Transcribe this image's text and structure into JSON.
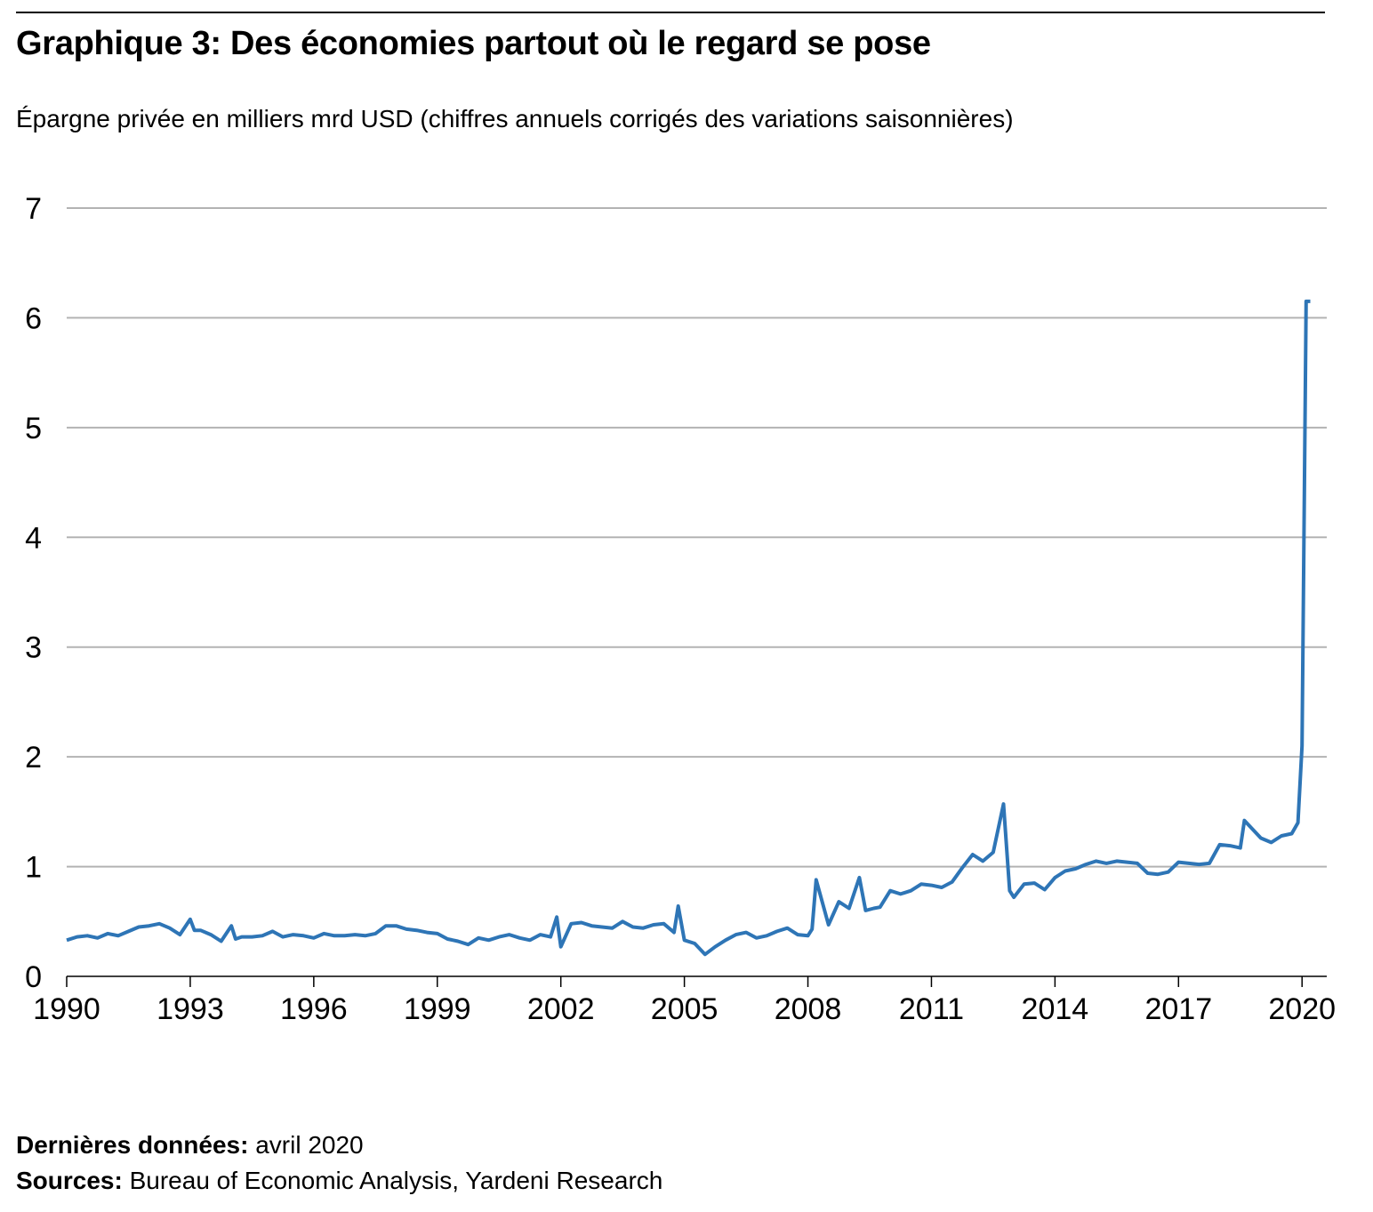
{
  "header": {
    "title": "Graphique 3: Des économies partout où le regard se pose",
    "subtitle": "Épargne privée en milliers mrd USD (chiffres annuels corrigés des variations saisonnières)"
  },
  "footer": {
    "latest_label": "Dernières données:",
    "latest_value": "avril 2020",
    "sources_label": "Sources:",
    "sources_value": "Bureau of Economic Analysis, Yardeni Research"
  },
  "colors": {
    "line": "#2e75b6",
    "grid": "#b3b3b3",
    "axis": "#000000"
  },
  "chart_data": {
    "type": "line",
    "title": "Graphique 3: Des économies partout où le regard se pose",
    "ylabel": "Épargne privée en milliers mrd USD (chiffres annuels corrigés des variations saisonnières)",
    "xlabel": "",
    "xlim": [
      1990,
      2020.6
    ],
    "ylim": [
      0,
      7
    ],
    "yticks": [
      0,
      1,
      2,
      3,
      4,
      5,
      6,
      7
    ],
    "xticks": [
      1990,
      1993,
      1996,
      1999,
      2002,
      2005,
      2008,
      2011,
      2014,
      2017,
      2020
    ],
    "grid": true,
    "legend": "none",
    "series": [
      {
        "x": [
          1990,
          1990.25,
          1990.5,
          1990.75,
          1991,
          1991.25,
          1991.5,
          1991.75,
          1992,
          1992.25,
          1992.5,
          1992.75,
          1993,
          1993.1,
          1993.25,
          1993.5,
          1993.75,
          1994,
          1994.1,
          1994.25,
          1994.5,
          1994.75,
          1995,
          1995.25,
          1995.5,
          1995.75,
          1996,
          1996.25,
          1996.5,
          1996.75,
          1997,
          1997.25,
          1997.5,
          1997.75,
          1998,
          1998.25,
          1998.5,
          1998.75,
          1999,
          1999.25,
          1999.5,
          1999.75,
          2000,
          2000.25,
          2000.5,
          2000.75,
          2001,
          2001.25,
          2001.5,
          2001.75,
          2001.9,
          2002,
          2002.25,
          2002.5,
          2002.75,
          2003,
          2003.25,
          2003.5,
          2003.75,
          2004,
          2004.25,
          2004.5,
          2004.75,
          2004.85,
          2005,
          2005.25,
          2005.5,
          2005.75,
          2006,
          2006.25,
          2006.5,
          2006.75,
          2007,
          2007.25,
          2007.5,
          2007.75,
          2008,
          2008.1,
          2008.2,
          2008.5,
          2008.75,
          2009,
          2009.25,
          2009.4,
          2009.6,
          2009.75,
          2010,
          2010.25,
          2010.5,
          2010.75,
          2011,
          2011.25,
          2011.5,
          2011.75,
          2012,
          2012.25,
          2012.5,
          2012.75,
          2012.9,
          2013,
          2013.25,
          2013.5,
          2013.75,
          2014,
          2014.25,
          2014.5,
          2014.75,
          2015,
          2015.25,
          2015.5,
          2015.75,
          2016,
          2016.25,
          2016.5,
          2016.75,
          2017,
          2017.25,
          2017.5,
          2017.75,
          2018,
          2018.25,
          2018.5,
          2018.6,
          2018.75,
          2019,
          2019.25,
          2019.5,
          2019.75,
          2019.9,
          2020,
          2020.1,
          2020.2
        ],
        "y": [
          0.33,
          0.36,
          0.37,
          0.35,
          0.39,
          0.37,
          0.41,
          0.45,
          0.46,
          0.48,
          0.44,
          0.38,
          0.52,
          0.42,
          0.42,
          0.38,
          0.32,
          0.46,
          0.34,
          0.36,
          0.36,
          0.37,
          0.41,
          0.36,
          0.38,
          0.37,
          0.35,
          0.39,
          0.37,
          0.37,
          0.38,
          0.37,
          0.39,
          0.46,
          0.46,
          0.43,
          0.42,
          0.4,
          0.39,
          0.34,
          0.32,
          0.29,
          0.35,
          0.33,
          0.36,
          0.38,
          0.35,
          0.33,
          0.38,
          0.36,
          0.54,
          0.27,
          0.48,
          0.49,
          0.46,
          0.45,
          0.44,
          0.5,
          0.45,
          0.44,
          0.47,
          0.48,
          0.4,
          0.64,
          0.33,
          0.3,
          0.2,
          0.27,
          0.33,
          0.38,
          0.4,
          0.35,
          0.37,
          0.41,
          0.44,
          0.38,
          0.37,
          0.43,
          0.88,
          0.47,
          0.68,
          0.62,
          0.9,
          0.6,
          0.62,
          0.63,
          0.78,
          0.75,
          0.78,
          0.84,
          0.83,
          0.81,
          0.86,
          0.99,
          1.11,
          1.05,
          1.13,
          1.57,
          0.78,
          0.72,
          0.84,
          0.85,
          0.79,
          0.9,
          0.96,
          0.98,
          1.02,
          1.05,
          1.03,
          1.05,
          1.04,
          1.03,
          0.94,
          0.93,
          0.95,
          1.04,
          1.03,
          1.02,
          1.03,
          1.2,
          1.19,
          1.17,
          1.42,
          1.36,
          1.26,
          1.22,
          1.28,
          1.3,
          1.4,
          2.1,
          6.15,
          6.15
        ]
      }
    ]
  }
}
